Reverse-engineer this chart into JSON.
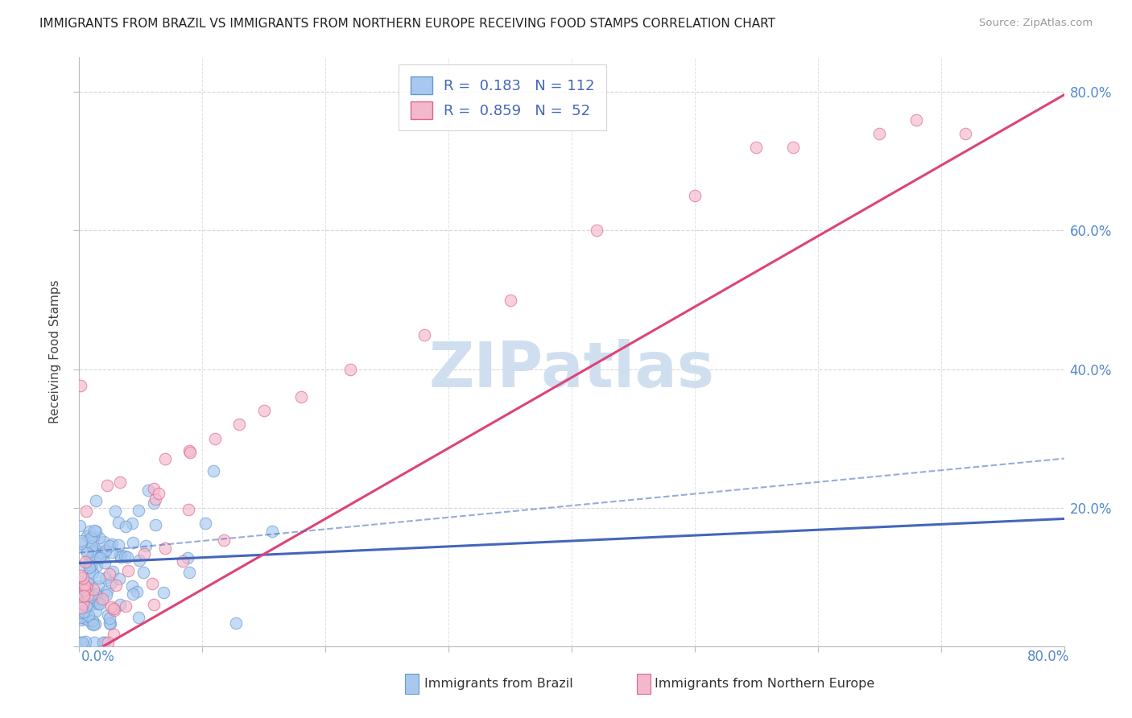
{
  "title": "IMMIGRANTS FROM BRAZIL VS IMMIGRANTS FROM NORTHERN EUROPE RECEIVING FOOD STAMPS CORRELATION CHART",
  "source": "Source: ZipAtlas.com",
  "legend_brazil": "Immigrants from Brazil",
  "legend_north_eu": "Immigrants from Northern Europe",
  "R_brazil": "0.183",
  "N_brazil": "112",
  "R_north_eu": "0.859",
  "N_north_eu": "52",
  "ylabel": "Receiving Food Stamps",
  "brazil_fill": "#a8c8f0",
  "brazil_edge": "#6699cc",
  "north_eu_fill": "#f4b8cc",
  "north_eu_edge": "#dd6688",
  "brazil_line_color": "#4466bb",
  "north_eu_line_color": "#dd4477",
  "background_color": "#ffffff",
  "grid_color": "#cccccc",
  "watermark_color": "#d0dff0",
  "right_tick_color": "#5588cc",
  "legend_text_color": "#4466bb"
}
